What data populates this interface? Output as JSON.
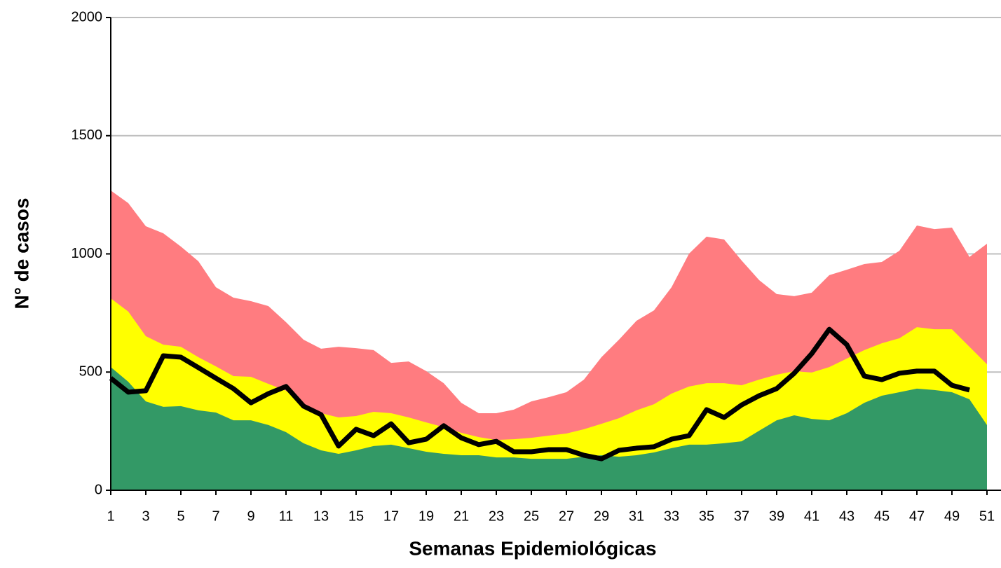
{
  "chart_data": {
    "type": "area-line",
    "x_label": "Semanas Epidemiológicas",
    "y_label": "N° de casos",
    "x": [
      1,
      2,
      3,
      4,
      5,
      6,
      7,
      8,
      9,
      10,
      11,
      12,
      13,
      14,
      15,
      16,
      17,
      18,
      19,
      20,
      21,
      22,
      23,
      24,
      25,
      26,
      27,
      28,
      29,
      30,
      31,
      32,
      33,
      34,
      35,
      36,
      37,
      38,
      39,
      40,
      41,
      42,
      43,
      44,
      45,
      46,
      47,
      48,
      49,
      50,
      51
    ],
    "xlim": [
      1,
      51.8
    ],
    "xticks": [
      1,
      3,
      5,
      7,
      9,
      11,
      13,
      15,
      17,
      19,
      21,
      23,
      25,
      27,
      29,
      31,
      33,
      35,
      37,
      39,
      41,
      43,
      45,
      47,
      49,
      51
    ],
    "ylim": [
      0,
      2000
    ],
    "yticks": [
      0,
      500,
      1000,
      1500,
      2000
    ],
    "grid": true,
    "series": [
      {
        "kind": "area",
        "color": "#ff7c80",
        "values": [
          1268,
          1215,
          1117,
          1087,
          1031,
          969,
          859,
          815,
          800,
          779,
          711,
          637,
          599,
          607,
          601,
          593,
          539,
          545,
          504,
          453,
          370,
          326,
          326,
          341,
          376,
          394,
          415,
          468,
          563,
          637,
          717,
          761,
          859,
          1001,
          1073,
          1061,
          972,
          889,
          830,
          821,
          836,
          910,
          933,
          957,
          966,
          1013,
          1120,
          1105,
          1111,
          987,
          1043
        ]
      },
      {
        "kind": "area",
        "color": "#ffff00",
        "values": [
          812,
          756,
          652,
          616,
          607,
          563,
          524,
          483,
          480,
          450,
          421,
          361,
          326,
          308,
          314,
          332,
          326,
          308,
          287,
          267,
          243,
          225,
          213,
          216,
          222,
          231,
          240,
          258,
          281,
          305,
          338,
          364,
          409,
          439,
          453,
          453,
          444,
          468,
          489,
          504,
          498,
          521,
          557,
          593,
          622,
          643,
          690,
          681,
          681,
          607,
          533
        ]
      },
      {
        "kind": "area",
        "color": "#339966",
        "values": [
          521,
          459,
          376,
          353,
          356,
          338,
          329,
          296,
          296,
          276,
          246,
          199,
          169,
          154,
          169,
          187,
          193,
          178,
          163,
          154,
          148,
          148,
          139,
          139,
          133,
          133,
          133,
          142,
          148,
          142,
          148,
          160,
          178,
          193,
          193,
          199,
          207,
          252,
          296,
          317,
          302,
          296,
          326,
          370,
          400,
          415,
          430,
          424,
          415,
          385,
          276
        ]
      },
      {
        "kind": "line",
        "color": "#000000",
        "values": [
          474,
          415,
          421,
          569,
          563,
          519,
          474,
          430,
          370,
          409,
          439,
          356,
          320,
          187,
          258,
          231,
          281,
          201,
          216,
          273,
          222,
          193,
          207,
          163,
          163,
          172,
          172,
          148,
          133,
          169,
          178,
          184,
          216,
          231,
          341,
          308,
          361,
          400,
          430,
          495,
          578,
          681,
          616,
          483,
          468,
          495,
          504,
          504,
          444,
          424,
          null
        ]
      }
    ]
  }
}
